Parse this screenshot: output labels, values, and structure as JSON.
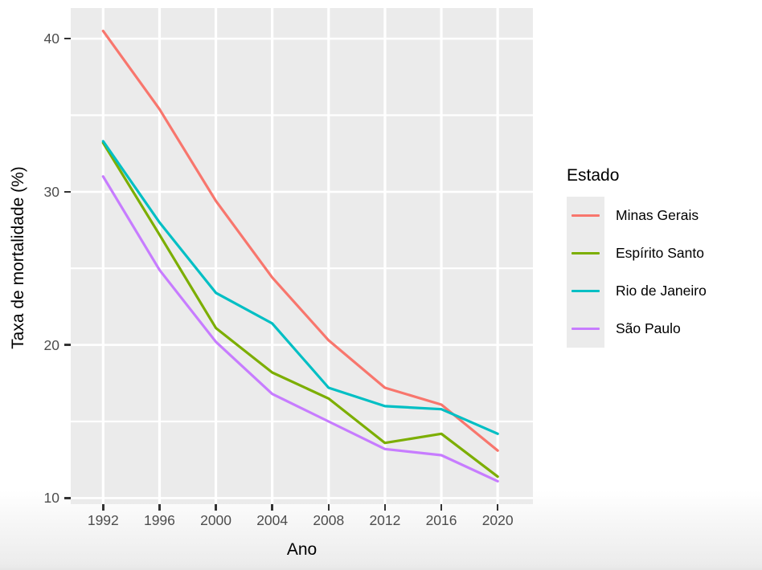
{
  "figure": {
    "x_axis_title": "Ano",
    "y_axis_title": "Taxa de mortalidade (%)",
    "legend_title": "Estado"
  },
  "chart_data": {
    "type": "line",
    "title": "",
    "xlabel": "Ano",
    "ylabel": "Taxa de mortalidade (%)",
    "legend_title": "Estado",
    "legend_position": "right",
    "grid": "white-on-gray, vertical majors only, horizontal majors and minors",
    "x": [
      1992,
      1996,
      2000,
      2004,
      2008,
      2012,
      2016,
      2020
    ],
    "x_tick_labels": [
      "1992",
      "1996",
      "2000",
      "2004",
      "2008",
      "2012",
      "2016",
      "2020"
    ],
    "y_ticks": [
      10,
      20,
      30,
      40
    ],
    "y_tick_labels": [
      "10",
      "20",
      "30",
      "40"
    ],
    "y_minor_ticks": [
      15,
      25,
      35
    ],
    "xlim": [
      1989.7,
      2022.5
    ],
    "ylim": [
      9.6,
      42.0
    ],
    "series": [
      {
        "name": "Minas Gerais",
        "color": "#F8766D",
        "values": [
          40.5,
          35.4,
          29.4,
          24.4,
          20.3,
          17.2,
          16.1,
          13.1
        ]
      },
      {
        "name": "Espírito Santo",
        "color": "#7CAE00",
        "values": [
          33.2,
          27.2,
          21.1,
          18.2,
          16.5,
          13.6,
          14.2,
          11.4
        ]
      },
      {
        "name": "Rio de Janeiro",
        "color": "#00BFC4",
        "values": [
          33.3,
          28.0,
          23.4,
          21.4,
          17.2,
          16.0,
          15.8,
          14.2
        ]
      },
      {
        "name": "São Paulo",
        "color": "#C77CFF",
        "values": [
          31.0,
          24.9,
          20.2,
          16.8,
          15.0,
          13.2,
          12.8,
          11.1
        ]
      }
    ]
  },
  "theme": {
    "panel_background": "#EBEBEB",
    "grid_color": "#FFFFFF",
    "tick_mark_color": "#333333",
    "axis_text_color": "#4D4D4D",
    "axis_title_color": "#000000"
  }
}
